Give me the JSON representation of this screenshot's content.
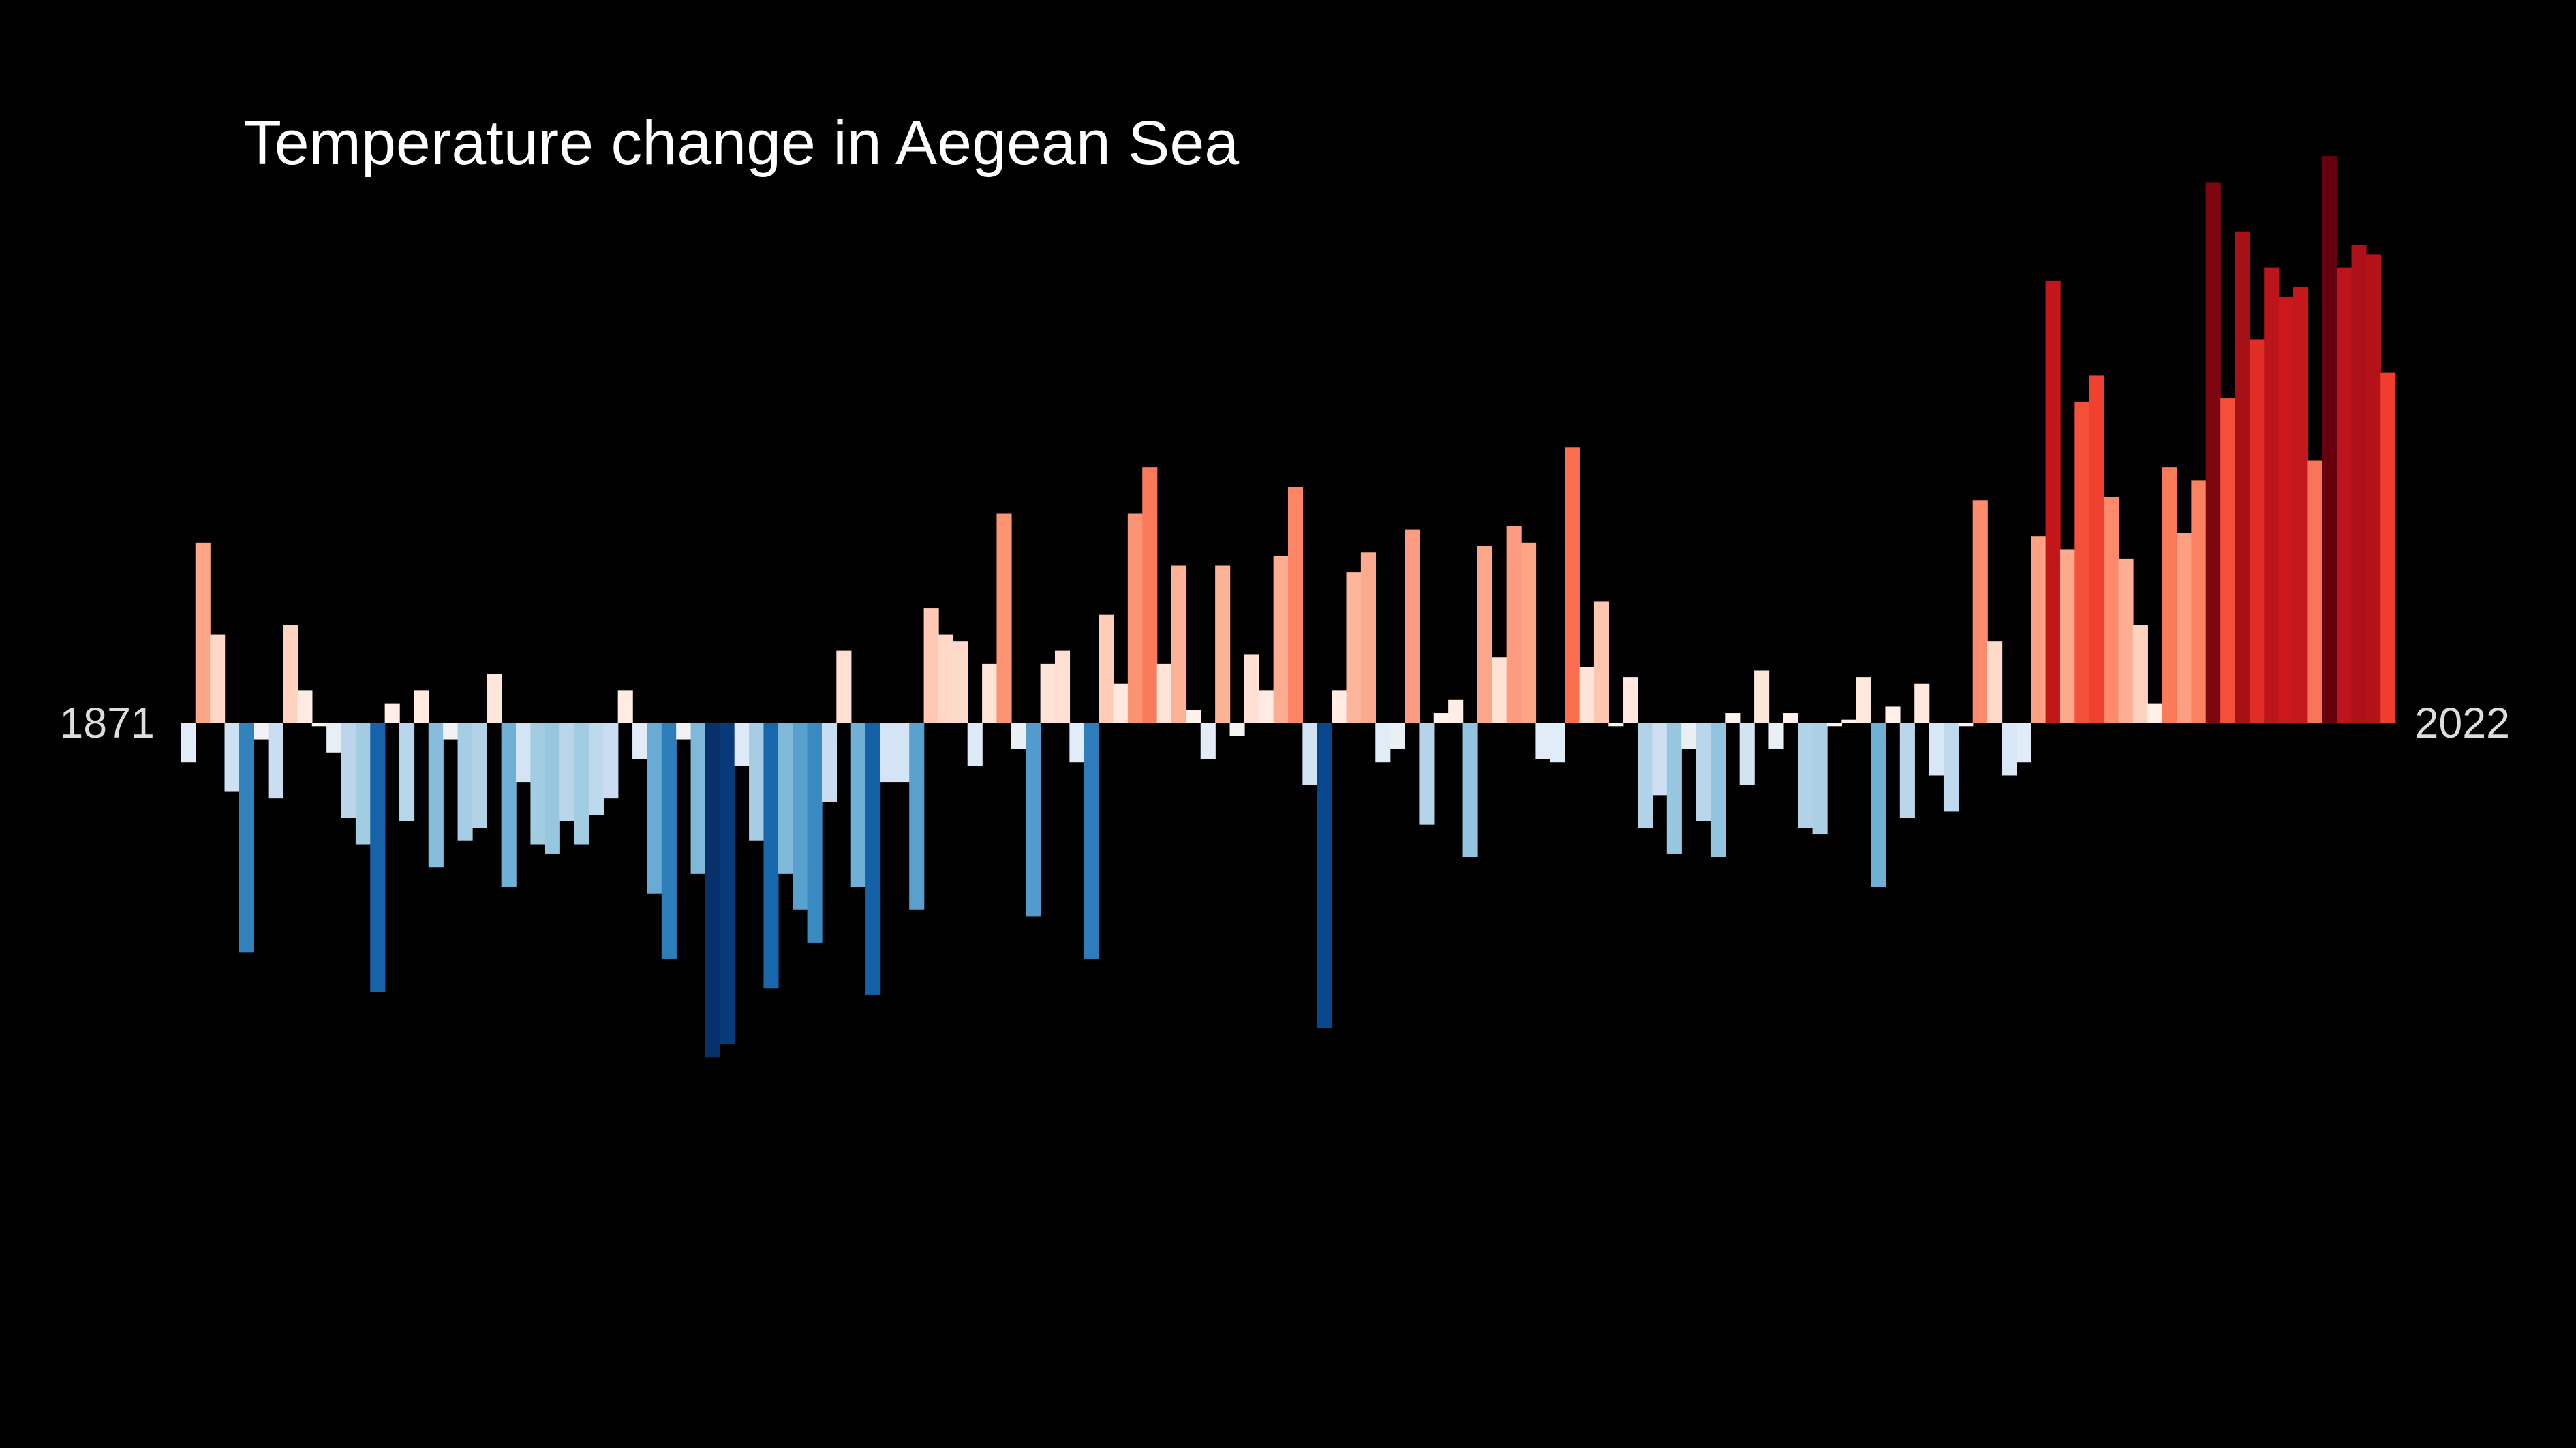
{
  "chart_data": {
    "type": "bar",
    "title": "Temperature change in Aegean Sea",
    "categories": [
      "1871",
      null,
      null,
      null,
      null,
      null,
      null,
      null,
      null,
      null,
      null,
      null,
      null,
      null,
      null,
      null,
      null,
      null,
      null,
      null,
      null,
      null,
      null,
      null,
      null,
      null,
      null,
      null,
      null,
      null,
      null,
      null,
      null,
      null,
      null,
      null,
      null,
      null,
      null,
      null,
      null,
      null,
      null,
      null,
      null,
      null,
      null,
      null,
      null,
      null,
      null,
      null,
      null,
      null,
      null,
      null,
      null,
      null,
      null,
      null,
      null,
      null,
      null,
      null,
      null,
      null,
      null,
      null,
      null,
      null,
      null,
      null,
      null,
      null,
      null,
      null,
      null,
      null,
      null,
      null,
      null,
      null,
      null,
      null,
      null,
      null,
      null,
      null,
      null,
      null,
      null,
      null,
      null,
      null,
      null,
      null,
      null,
      null,
      null,
      null,
      null,
      null,
      null,
      null,
      null,
      null,
      null,
      null,
      null,
      null,
      null,
      null,
      null,
      null,
      null,
      null,
      null,
      null,
      null,
      null,
      null,
      null,
      null,
      null,
      null,
      null,
      null,
      null,
      null,
      null,
      null,
      null,
      null,
      null,
      null,
      null,
      null,
      null,
      null,
      null,
      null,
      null,
      null,
      null,
      null,
      null,
      null,
      null,
      null,
      null,
      null,
      "2022"
    ],
    "values": [
      -0.12,
      0.55,
      0.27,
      -0.21,
      -0.7,
      -0.05,
      -0.23,
      0.3,
      0.1,
      -0.01,
      -0.09,
      -0.29,
      -0.37,
      -0.82,
      0.06,
      -0.3,
      0.1,
      -0.44,
      -0.05,
      -0.36,
      -0.32,
      0.15,
      -0.5,
      -0.18,
      -0.37,
      -0.4,
      -0.3,
      -0.37,
      -0.28,
      -0.23,
      0.1,
      -0.11,
      -0.52,
      -0.72,
      -0.05,
      -0.46,
      -1.02,
      -0.98,
      -0.13,
      -0.36,
      -0.81,
      -0.46,
      -0.57,
      -0.67,
      -0.24,
      0.22,
      -0.5,
      -0.83,
      -0.18,
      -0.18,
      -0.57,
      0.35,
      0.27,
      0.25,
      -0.13,
      0.18,
      0.64,
      -0.08,
      -0.59,
      0.18,
      0.22,
      -0.12,
      -0.72,
      0.33,
      0.12,
      0.64,
      0.78,
      0.18,
      0.48,
      0.04,
      -0.11,
      0.48,
      -0.04,
      0.21,
      0.1,
      0.51,
      0.72,
      -0.19,
      -0.93,
      0.1,
      0.46,
      0.52,
      -0.12,
      -0.08,
      0.59,
      -0.31,
      0.03,
      0.07,
      -0.41,
      0.54,
      0.2,
      0.6,
      0.55,
      -0.11,
      -0.12,
      0.84,
      0.17,
      0.37,
      -0.01,
      0.14,
      -0.32,
      -0.22,
      -0.4,
      -0.08,
      -0.3,
      -0.41,
      0.03,
      -0.19,
      0.16,
      -0.08,
      0.03,
      -0.32,
      -0.34,
      -0.01,
      0.01,
      0.14,
      -0.5,
      0.05,
      -0.29,
      0.12,
      -0.16,
      -0.27,
      -0.01,
      0.68,
      0.25,
      -0.16,
      -0.12,
      0.57,
      1.35,
      0.53,
      0.98,
      1.06,
      0.69,
      0.5,
      0.3,
      0.06,
      0.78,
      0.58,
      0.74,
      1.65,
      0.99,
      1.5,
      1.17,
      1.39,
      1.3,
      1.33,
      0.8,
      1.73,
      1.39,
      1.46,
      1.43,
      1.07
    ],
    "colormap": [
      "#08306b",
      "#08519c",
      "#2171b5",
      "#4292c6",
      "#6baed6",
      "#9ecae1",
      "#c6dbef",
      "#deebf7",
      "#fff5f0",
      "#fee0d2",
      "#fcbba1",
      "#fc9272",
      "#fb6a4a",
      "#ef3b2c",
      "#cb181d",
      "#a50f15",
      "#67000d"
    ]
  }
}
